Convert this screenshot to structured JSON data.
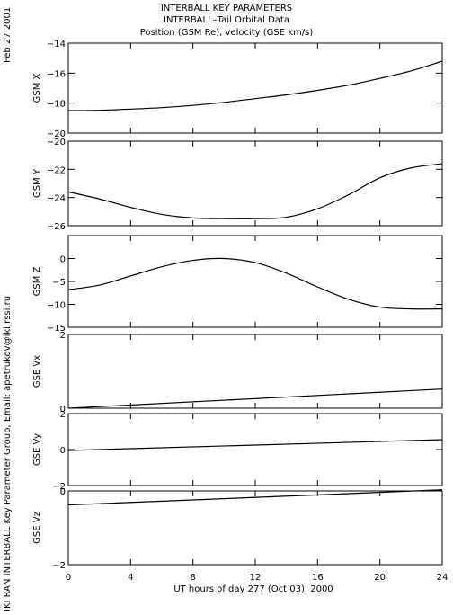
{
  "page": {
    "date_label": "Feb 27 2001",
    "credit_label": "IKI RAN INTERBALL Key Parameter Group, Email: apetrukov@iki.rssi.ru"
  },
  "chart_data": {
    "type": "line",
    "title_lines": [
      "INTERBALL KEY PARAMETERS",
      "INTERBALL–Tail Orbital Data",
      "Position (GSM Re), velocity (GSE km/s)"
    ],
    "xlabel": "UT hours of day 277 (Oct 03), 2000",
    "xlim": [
      0,
      24
    ],
    "xticks": [
      0,
      4,
      8,
      12,
      16,
      20,
      24
    ],
    "panels": [
      {
        "ylabel": "GSM X",
        "ylim": [
          -20,
          -14
        ],
        "yticks": [
          -20,
          -18,
          -16,
          -14
        ],
        "x": [
          0,
          2,
          4,
          6,
          8,
          10,
          12,
          14,
          16,
          18,
          20,
          22,
          24
        ],
        "values": [
          -18.5,
          -18.48,
          -18.4,
          -18.3,
          -18.15,
          -17.95,
          -17.7,
          -17.45,
          -17.15,
          -16.8,
          -16.35,
          -15.85,
          -15.2
        ]
      },
      {
        "ylabel": "GSM Y",
        "ylim": [
          -26,
          -20
        ],
        "yticks": [
          -26,
          -24,
          -22,
          -20
        ],
        "x": [
          0,
          2,
          4,
          6,
          8,
          10,
          12,
          14,
          16,
          18,
          20,
          22,
          24
        ],
        "values": [
          -23.6,
          -24.1,
          -24.7,
          -25.2,
          -25.45,
          -25.5,
          -25.5,
          -25.4,
          -24.8,
          -23.8,
          -22.6,
          -21.9,
          -21.6
        ]
      },
      {
        "ylabel": "GSM Z",
        "ylim": [
          -15,
          5
        ],
        "yticks": [
          -15,
          -10,
          -5,
          0
        ],
        "x": [
          0,
          2,
          4,
          6,
          8,
          10,
          12,
          14,
          16,
          18,
          20,
          22,
          24
        ],
        "values": [
          -6.8,
          -5.8,
          -3.8,
          -1.8,
          -0.4,
          0,
          -0.9,
          -3.2,
          -6.2,
          -8.9,
          -10.6,
          -11.0,
          -11.0
        ]
      },
      {
        "ylabel": "GSE Vx",
        "ylim": [
          0,
          2
        ],
        "yticks": [
          0,
          2
        ],
        "x": [
          0,
          24
        ],
        "values": [
          0,
          0.52
        ]
      },
      {
        "ylabel": "GSE Vy",
        "ylim": [
          -2,
          2
        ],
        "yticks": [
          -2,
          0,
          2
        ],
        "x": [
          0,
          24
        ],
        "values": [
          -0.05,
          0.55
        ]
      },
      {
        "ylabel": "GSE Vz",
        "ylim": [
          -2,
          0
        ],
        "yticks": [
          -2,
          0
        ],
        "x": [
          0,
          24
        ],
        "values": [
          -0.38,
          0.03
        ]
      }
    ]
  }
}
